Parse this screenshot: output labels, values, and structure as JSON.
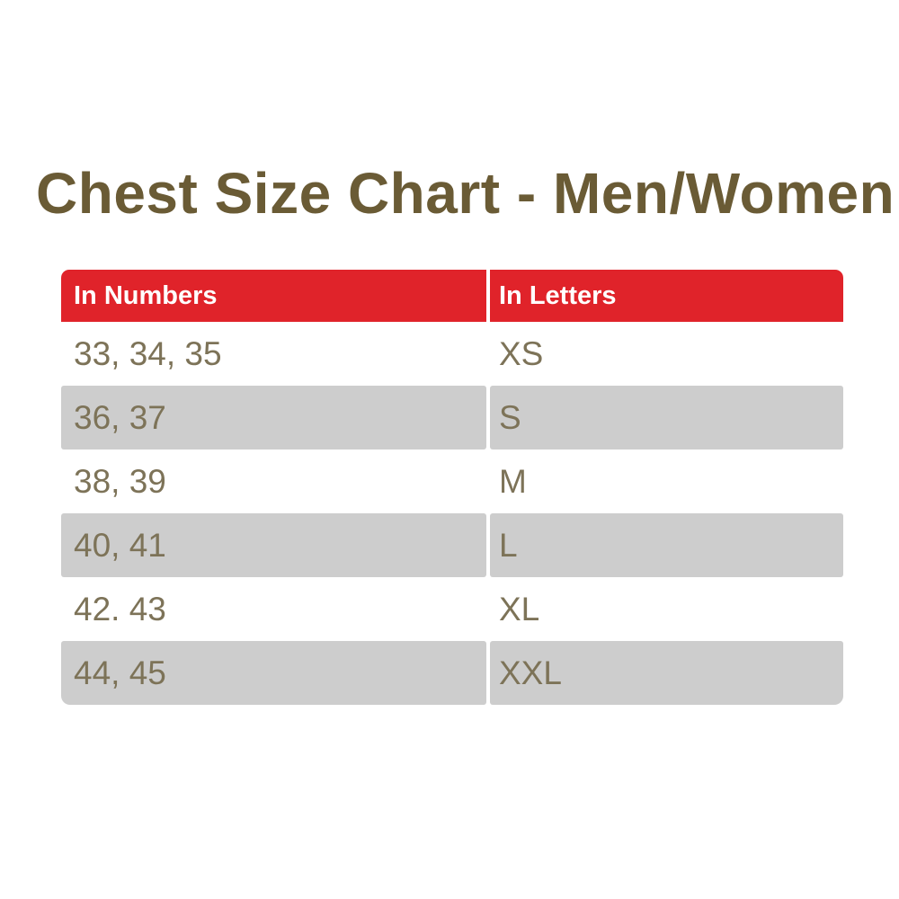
{
  "title": "Chest Size Chart - Men/Women",
  "table": {
    "headers": [
      "In Numbers",
      "In Letters"
    ],
    "rows": [
      {
        "numbers": "33, 34, 35",
        "letters": "XS"
      },
      {
        "numbers": "36, 37",
        "letters": "S"
      },
      {
        "numbers": "38, 39",
        "letters": "M"
      },
      {
        "numbers": "40, 41",
        "letters": "L"
      },
      {
        "numbers": "42. 43",
        "letters": "XL"
      },
      {
        "numbers": "44, 45",
        "letters": "XXL"
      }
    ]
  },
  "colors": {
    "page_bg": "#ffffff",
    "header_bg": "#e0232a",
    "header_text": "#ffffff",
    "row_bg": "#ffffff",
    "row_alt_bg": "#cdcdcd",
    "cell_text": "#7d7358",
    "title_text": "#6a5b35"
  },
  "chart_data": {
    "type": "table",
    "title": "Chest Size Chart - Men/Women",
    "columns": [
      "In Numbers",
      "In Letters"
    ],
    "rows": [
      [
        "33, 34, 35",
        "XS"
      ],
      [
        "36, 37",
        "S"
      ],
      [
        "38, 39",
        "M"
      ],
      [
        "40, 41",
        "L"
      ],
      [
        "42. 43",
        "XL"
      ],
      [
        "44, 45",
        "XXL"
      ]
    ]
  }
}
